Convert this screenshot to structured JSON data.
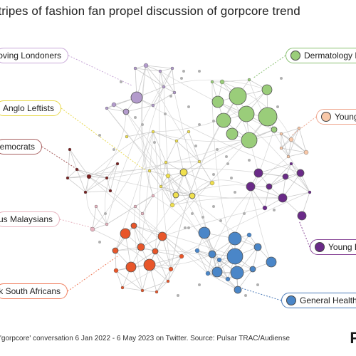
{
  "title": "Stripes of fashion fan propel discussion of gorpcore trend",
  "footer": "'gorpcore' conversation 6 Jan 2022 - 6 May 2023 on Twitter. Source: Pulsar TRAC/Audiense",
  "logo_text": "P",
  "segments": [
    {
      "id": "london",
      "label": "-loving Londoners",
      "color": "#c8a8d8",
      "fill": "#b39bcc"
    },
    {
      "id": "anglo",
      "label": "Anglo Leftists",
      "color": "#e8d84a",
      "fill": "#f0e04e"
    },
    {
      "id": "dem",
      "label": "emocrats",
      "color": "#a86060",
      "fill": "#7a2020"
    },
    {
      "id": "malay",
      "label": "ous Malaysians",
      "color": "#e8b4c0",
      "fill": "#e8b4c0"
    },
    {
      "id": "safrica",
      "label": "k South Africans",
      "color": "#f08060",
      "fill": "#e8562a"
    },
    {
      "id": "derm",
      "label": "Dermatology P",
      "color": "#88c070",
      "fill": "#9acd7a"
    },
    {
      "id": "young1",
      "label": "Young",
      "color": "#f0a890",
      "fill": "#f8c8a8"
    },
    {
      "id": "young2",
      "label": "Young B",
      "color": "#8a4a98",
      "fill": "#6a2a88"
    },
    {
      "id": "health",
      "label": "General Healtho",
      "color": "#4a7ab8",
      "fill": "#4a86c8"
    }
  ]
}
